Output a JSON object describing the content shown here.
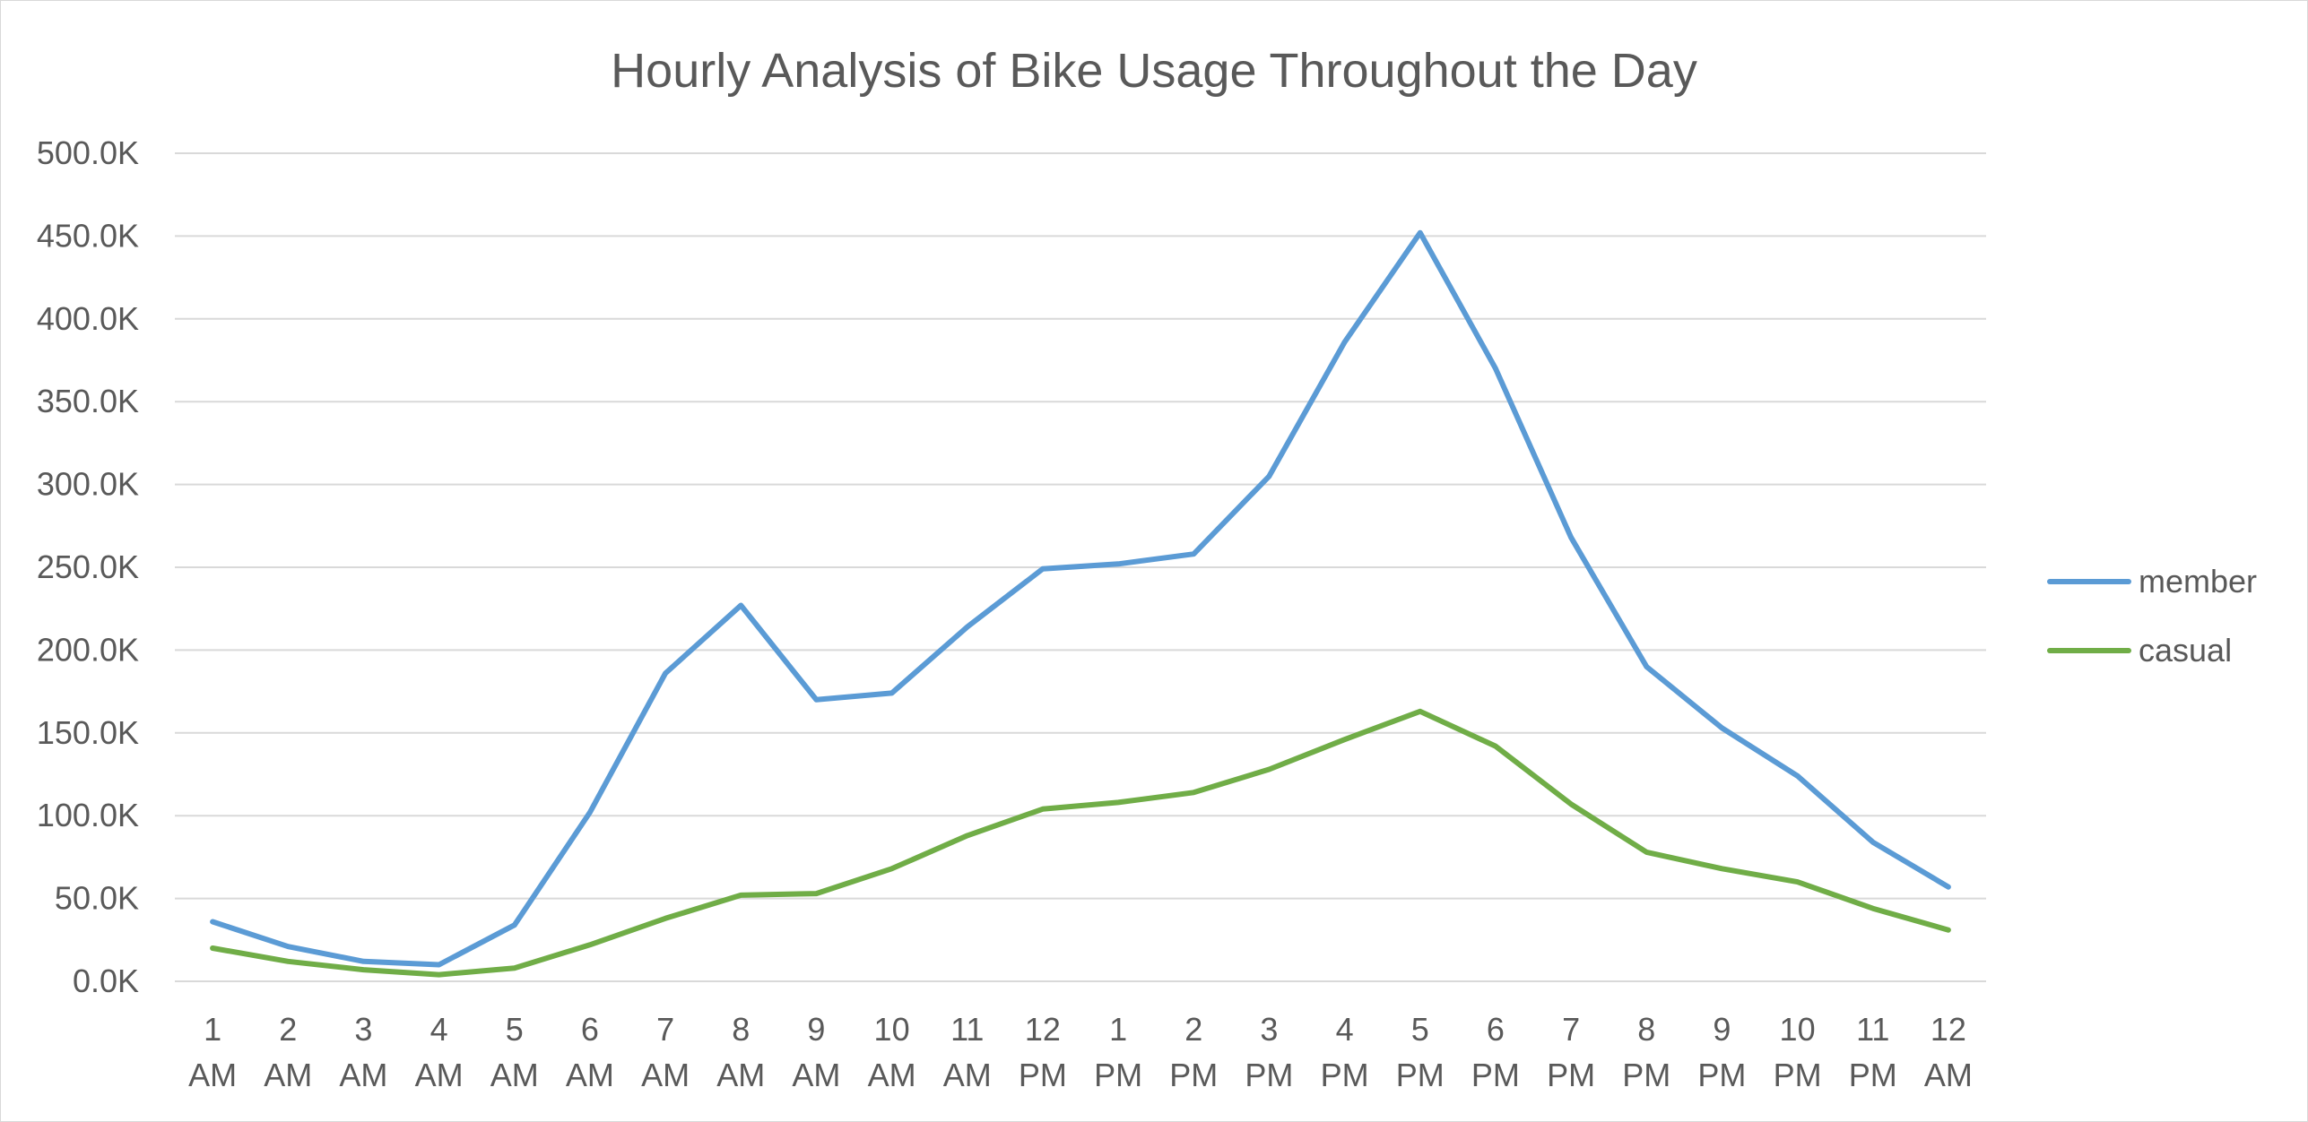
{
  "chart_data": {
    "type": "line",
    "title": "Hourly Analysis of Bike Usage Throughout the Day",
    "xlabel": "",
    "ylabel": "",
    "categories": [
      [
        "1",
        "AM"
      ],
      [
        "2",
        "AM"
      ],
      [
        "3",
        "AM"
      ],
      [
        "4",
        "AM"
      ],
      [
        "5",
        "AM"
      ],
      [
        "6",
        "AM"
      ],
      [
        "7",
        "AM"
      ],
      [
        "8",
        "AM"
      ],
      [
        "9",
        "AM"
      ],
      [
        "10",
        "AM"
      ],
      [
        "11",
        "AM"
      ],
      [
        "12",
        "PM"
      ],
      [
        "1",
        "PM"
      ],
      [
        "2",
        "PM"
      ],
      [
        "3",
        "PM"
      ],
      [
        "4",
        "PM"
      ],
      [
        "5",
        "PM"
      ],
      [
        "6",
        "PM"
      ],
      [
        "7",
        "PM"
      ],
      [
        "8",
        "PM"
      ],
      [
        "9",
        "PM"
      ],
      [
        "10",
        "PM"
      ],
      [
        "11",
        "PM"
      ],
      [
        "12",
        "AM"
      ]
    ],
    "ylim": [
      0,
      500000
    ],
    "yticks": [
      0,
      50000,
      100000,
      150000,
      200000,
      250000,
      300000,
      350000,
      400000,
      450000,
      500000
    ],
    "ytick_labels": [
      "0.0K",
      "50.0K",
      "100.0K",
      "150.0K",
      "200.0K",
      "250.0K",
      "300.0K",
      "350.0K",
      "400.0K",
      "450.0K",
      "500.0K"
    ],
    "grid": true,
    "legend_position": "right",
    "series": [
      {
        "name": "member",
        "color": "#5b9bd5",
        "values": [
          36000,
          21000,
          12000,
          10000,
          34000,
          102000,
          186000,
          227000,
          170000,
          174000,
          214000,
          249000,
          252000,
          258000,
          305000,
          386000,
          452000,
          370000,
          268000,
          190000,
          153000,
          124000,
          84000,
          57000
        ]
      },
      {
        "name": "casual",
        "color": "#70ad47",
        "values": [
          20000,
          12000,
          7000,
          4000,
          8000,
          22000,
          38000,
          52000,
          53000,
          68000,
          88000,
          104000,
          108000,
          114000,
          128000,
          146000,
          163000,
          142000,
          107000,
          78000,
          68000,
          60000,
          44000,
          31000
        ]
      }
    ]
  }
}
